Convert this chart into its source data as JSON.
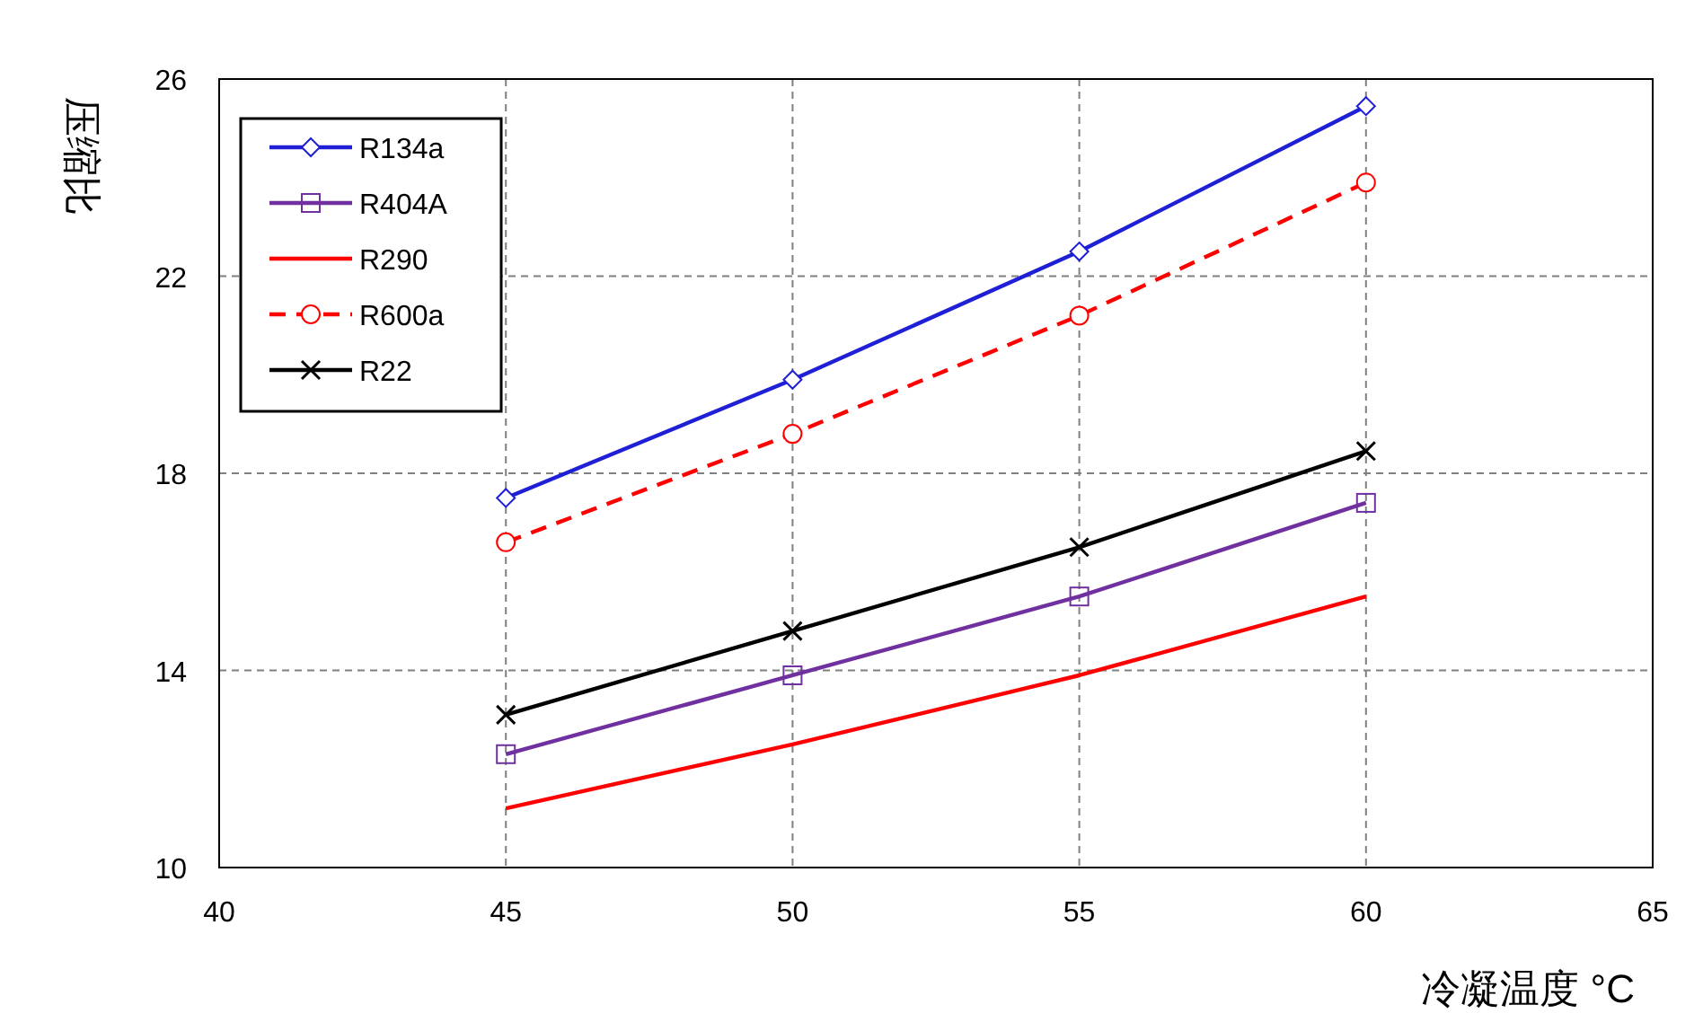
{
  "chart_data": {
    "type": "line",
    "xlabel": "冷凝温度 °C",
    "ylabel": "压缩比",
    "x": [
      45,
      50,
      55,
      60
    ],
    "xlim": [
      40,
      65
    ],
    "xticks": [
      40,
      45,
      50,
      55,
      60,
      65
    ],
    "ylim": [
      10,
      26
    ],
    "yticks": [
      10,
      14,
      18,
      22,
      26
    ],
    "grid": true,
    "legend": "top left",
    "series": [
      {
        "name": "R134a",
        "color": "#1f1fd6",
        "marker": "diamond",
        "line_style": "solid",
        "values": [
          17.5,
          19.9,
          22.5,
          25.45
        ]
      },
      {
        "name": "R404A",
        "color": "#7030a0",
        "marker": "square",
        "line_style": "solid",
        "values": [
          12.3,
          13.9,
          15.5,
          17.4
        ]
      },
      {
        "name": "R290",
        "color": "#ff0000",
        "marker": "none",
        "line_style": "solid",
        "values": [
          11.2,
          12.5,
          13.9,
          15.5
        ]
      },
      {
        "name": "R600a",
        "color": "#ff0000",
        "marker": "circle",
        "line_style": "dashed",
        "values": [
          16.6,
          18.8,
          21.2,
          23.9
        ]
      },
      {
        "name": "R22",
        "color": "#000000",
        "marker": "cross",
        "line_style": "solid",
        "values": [
          13.1,
          14.8,
          16.5,
          18.45
        ]
      }
    ]
  }
}
